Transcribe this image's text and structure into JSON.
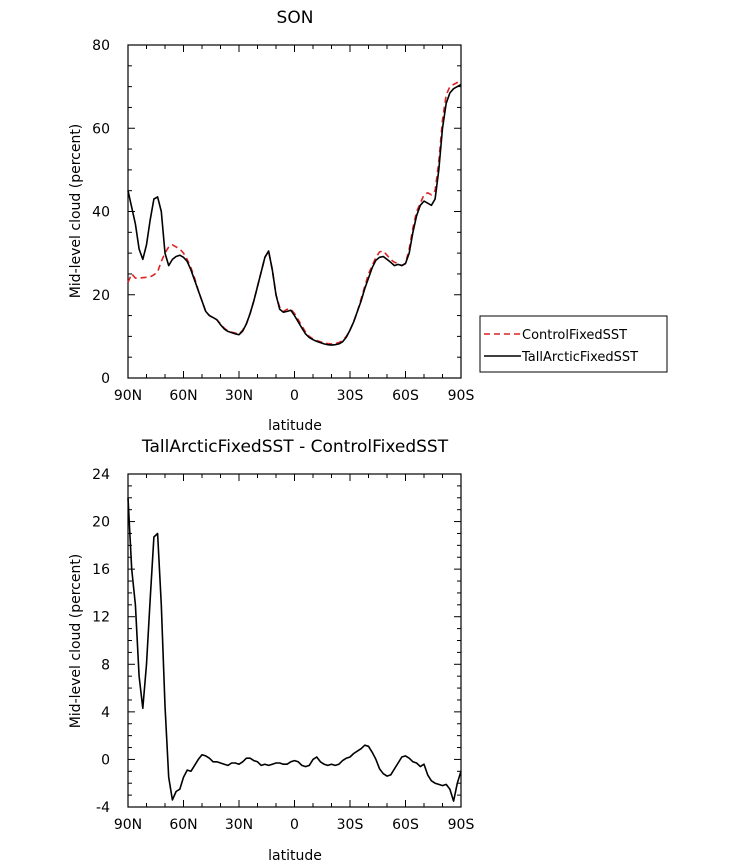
{
  "chart_data": [
    {
      "type": "line",
      "title": "SON",
      "xlabel": "latitude",
      "ylabel": "Mid-level cloud (percent)",
      "xlim": [
        90,
        -90
      ],
      "ylim": [
        0,
        80
      ],
      "xticks": [
        90,
        60,
        30,
        0,
        -30,
        -60,
        -90
      ],
      "xtick_labels": [
        "90N",
        "60N",
        "30N",
        "0",
        "30S",
        "60S",
        "90S"
      ],
      "yticks": [
        0,
        20,
        40,
        60,
        80
      ],
      "ytick_labels": [
        "0",
        "20",
        "40",
        "60",
        "80"
      ],
      "legend": {
        "position": "right",
        "entries": [
          "ControlFixedSST",
          "TallArcticFixedSST"
        ]
      },
      "series": [
        {
          "name": "ControlFixedSST",
          "color": "#dd2222",
          "dash": "dashed",
          "x": [
            90,
            88,
            86,
            84,
            82,
            80,
            78,
            76,
            74,
            72,
            70,
            68,
            66,
            64,
            62,
            60,
            58,
            56,
            54,
            52,
            50,
            48,
            46,
            44,
            42,
            40,
            38,
            36,
            34,
            32,
            30,
            28,
            26,
            24,
            22,
            20,
            18,
            16,
            14,
            12,
            10,
            8,
            6,
            4,
            2,
            0,
            -2,
            -4,
            -6,
            -8,
            -10,
            -12,
            -14,
            -16,
            -18,
            -20,
            -22,
            -24,
            -26,
            -28,
            -30,
            -32,
            -34,
            -36,
            -38,
            -40,
            -42,
            -44,
            -46,
            -48,
            -50,
            -52,
            -54,
            -56,
            -58,
            -60,
            -62,
            -64,
            -66,
            -68,
            -70,
            -72,
            -74,
            -76,
            -78,
            -80,
            -82,
            -84,
            -86,
            -88,
            -90
          ],
          "values": [
            23.0,
            25.0,
            24.0,
            24.0,
            24.1,
            24.2,
            24.3,
            24.8,
            25.5,
            28.0,
            30.0,
            31.5,
            32.0,
            31.5,
            31.0,
            30.0,
            28.5,
            26.5,
            24.0,
            21.0,
            18.5,
            16.0,
            15.0,
            14.5,
            14.0,
            13.0,
            12.0,
            11.3,
            11.0,
            10.8,
            10.5,
            11.5,
            13.0,
            15.5,
            18.5,
            22.0,
            25.5,
            29.0,
            30.5,
            26.0,
            20.0,
            17.0,
            16.0,
            16.5,
            16.5,
            15.5,
            14.0,
            12.5,
            11.0,
            10.0,
            9.4,
            9.0,
            8.7,
            8.4,
            8.3,
            8.2,
            8.3,
            8.5,
            9.0,
            10.0,
            11.5,
            13.5,
            16.0,
            19.0,
            22.0,
            25.0,
            27.0,
            29.0,
            30.3,
            30.5,
            29.5,
            28.5,
            27.8,
            27.5,
            27.0,
            27.5,
            31.0,
            36.0,
            40.0,
            42.0,
            44.0,
            44.5,
            44.0,
            45.0,
            52.0,
            62.0,
            68.0,
            70.0,
            70.5,
            71.0,
            71.5
          ]
        },
        {
          "name": "TallArcticFixedSST",
          "color": "#000000",
          "dash": "solid",
          "x": [
            90,
            88,
            86,
            84,
            82,
            80,
            78,
            76,
            74,
            72,
            70,
            68,
            66,
            64,
            62,
            60,
            58,
            56,
            54,
            52,
            50,
            48,
            46,
            44,
            42,
            40,
            38,
            36,
            34,
            32,
            30,
            28,
            26,
            24,
            22,
            20,
            18,
            16,
            14,
            12,
            10,
            8,
            6,
            4,
            2,
            0,
            -2,
            -4,
            -6,
            -8,
            -10,
            -12,
            -14,
            -16,
            -18,
            -20,
            -22,
            -24,
            -26,
            -28,
            -30,
            -32,
            -34,
            -36,
            -38,
            -40,
            -42,
            -44,
            -46,
            -48,
            -50,
            -52,
            -54,
            -56,
            -58,
            -60,
            -62,
            -64,
            -66,
            -68,
            -70,
            -72,
            -74,
            -76,
            -78,
            -80,
            -82,
            -84,
            -86,
            -88,
            -90
          ],
          "values": [
            45.0,
            41.0,
            37.0,
            31.0,
            28.5,
            32.0,
            38.0,
            43.0,
            43.5,
            40.0,
            30.0,
            27.0,
            28.5,
            29.2,
            29.5,
            29.0,
            28.0,
            26.0,
            23.5,
            21.0,
            18.5,
            16.0,
            15.0,
            14.5,
            14.0,
            12.8,
            11.8,
            11.2,
            10.9,
            10.6,
            10.4,
            11.3,
            13.0,
            15.5,
            18.5,
            22.0,
            25.5,
            29.0,
            30.5,
            26.0,
            20.0,
            16.5,
            15.8,
            16.0,
            16.3,
            15.0,
            13.5,
            12.0,
            10.6,
            9.7,
            9.2,
            8.8,
            8.5,
            8.2,
            8.0,
            7.9,
            8.0,
            8.2,
            8.7,
            9.8,
            11.5,
            13.5,
            16.0,
            18.5,
            21.5,
            24.0,
            26.5,
            28.3,
            29.0,
            29.2,
            28.5,
            27.8,
            27.0,
            27.3,
            27.0,
            27.5,
            30.0,
            35.0,
            39.0,
            41.5,
            42.5,
            42.0,
            41.5,
            43.0,
            50.0,
            60.0,
            66.0,
            68.5,
            69.5,
            70.0,
            70.5
          ]
        }
      ]
    },
    {
      "type": "line",
      "title": "TallArcticFixedSST - ControlFixedSST",
      "xlabel": "latitude",
      "ylabel": "Mid-level cloud (percent)",
      "xlim": [
        90,
        -90
      ],
      "ylim": [
        -4,
        24
      ],
      "xticks": [
        90,
        60,
        30,
        0,
        -30,
        -60,
        -90
      ],
      "xtick_labels": [
        "90N",
        "60N",
        "30N",
        "0",
        "30S",
        "60S",
        "90S"
      ],
      "yticks": [
        -4,
        0,
        4,
        8,
        12,
        16,
        20,
        24
      ],
      "ytick_labels": [
        "-4",
        "0",
        "4",
        "8",
        "12",
        "16",
        "20",
        "24"
      ],
      "series": [
        {
          "color": "#000000",
          "dash": "solid",
          "x": [
            90,
            88,
            86,
            84,
            82,
            80,
            78,
            76,
            74,
            72,
            70,
            68,
            66,
            64,
            62,
            60,
            58,
            56,
            54,
            52,
            50,
            48,
            46,
            44,
            42,
            40,
            38,
            36,
            34,
            32,
            30,
            28,
            26,
            24,
            22,
            20,
            18,
            16,
            14,
            12,
            10,
            8,
            6,
            4,
            2,
            0,
            -2,
            -4,
            -6,
            -8,
            -10,
            -12,
            -14,
            -16,
            -18,
            -20,
            -22,
            -24,
            -26,
            -28,
            -30,
            -32,
            -34,
            -36,
            -38,
            -40,
            -42,
            -44,
            -46,
            -48,
            -50,
            -52,
            -54,
            -56,
            -58,
            -60,
            -62,
            -64,
            -66,
            -68,
            -70,
            -72,
            -74,
            -76,
            -78,
            -80,
            -82,
            -84,
            -86,
            -88,
            -90
          ],
          "values": [
            22.0,
            16.0,
            13.0,
            7.0,
            4.3,
            8.0,
            13.5,
            18.7,
            19.0,
            13.0,
            4.5,
            -1.5,
            -3.4,
            -2.7,
            -2.5,
            -1.5,
            -0.9,
            -1.0,
            -0.5,
            0.0,
            0.4,
            0.3,
            0.1,
            -0.2,
            -0.2,
            -0.3,
            -0.4,
            -0.5,
            -0.3,
            -0.3,
            -0.4,
            -0.2,
            0.1,
            0.1,
            -0.1,
            -0.2,
            -0.5,
            -0.4,
            -0.5,
            -0.4,
            -0.3,
            -0.3,
            -0.4,
            -0.4,
            -0.2,
            -0.1,
            -0.2,
            -0.5,
            -0.6,
            -0.5,
            0.0,
            0.2,
            -0.2,
            -0.4,
            -0.5,
            -0.4,
            -0.5,
            -0.4,
            -0.1,
            0.1,
            0.2,
            0.5,
            0.7,
            0.9,
            1.2,
            1.1,
            0.6,
            0.0,
            -0.8,
            -1.2,
            -1.4,
            -1.3,
            -0.8,
            -0.3,
            0.2,
            0.3,
            0.1,
            -0.2,
            -0.3,
            -0.6,
            -0.4,
            -1.3,
            -1.8,
            -2.0,
            -2.1,
            -2.2,
            -2.1,
            -2.5,
            -3.5,
            -2.0,
            -1.0
          ]
        }
      ]
    }
  ]
}
